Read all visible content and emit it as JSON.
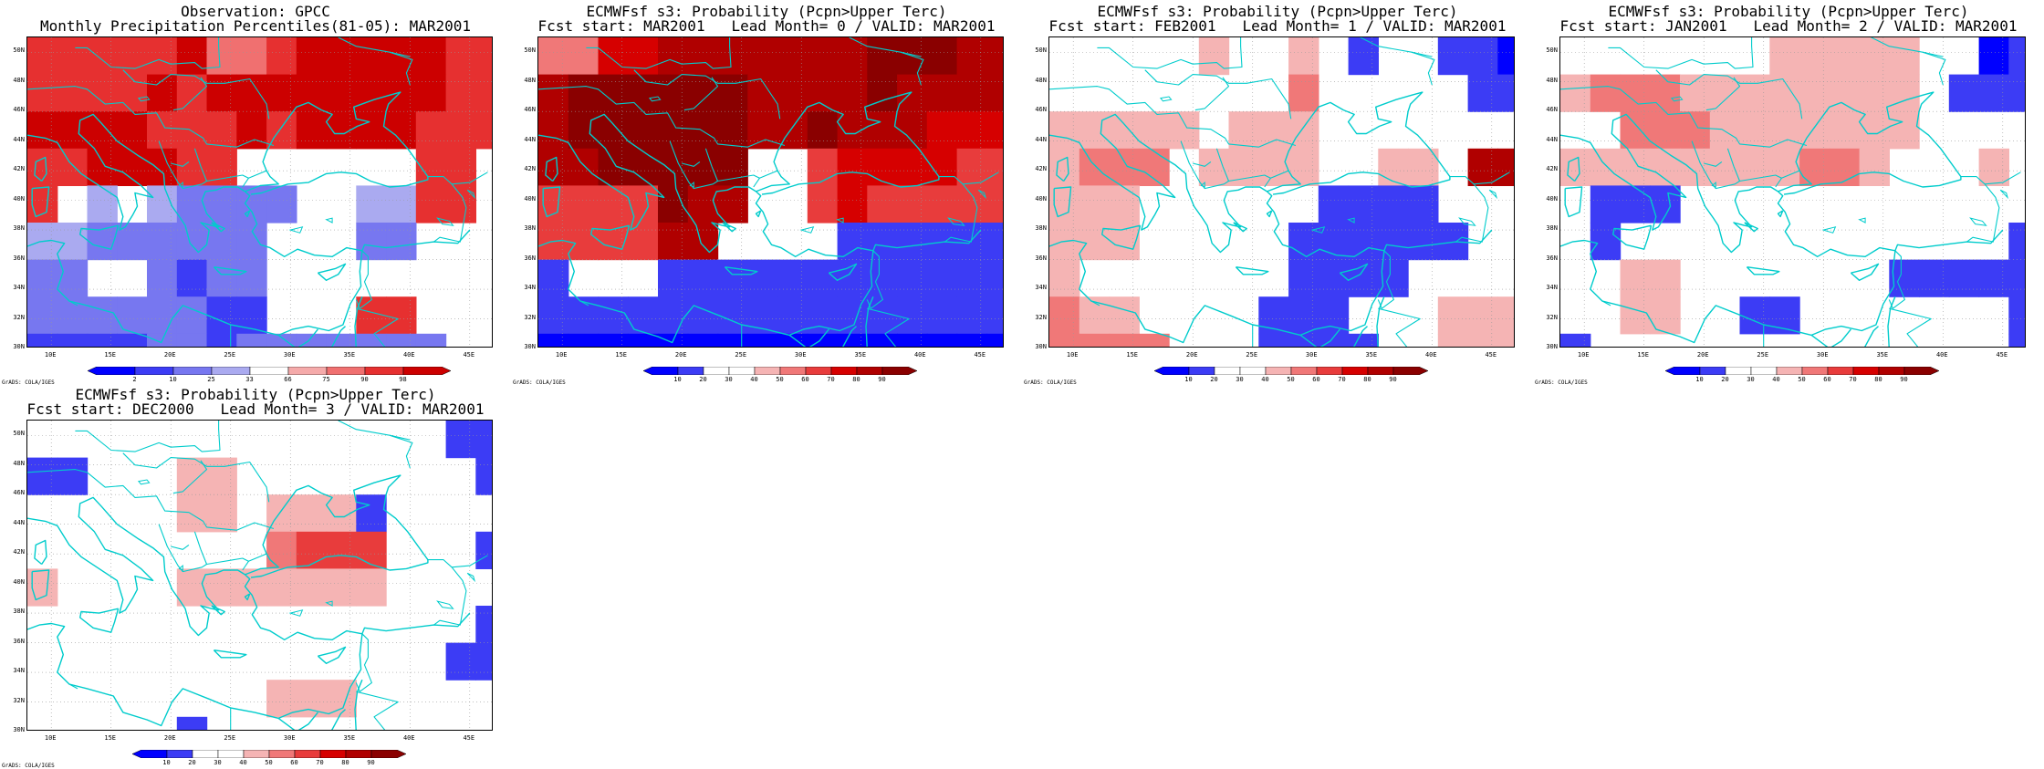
{
  "credit": "GrADS: COLA/IGES",
  "lat_range": [
    30,
    51
  ],
  "lon_range": [
    8,
    47
  ],
  "lat_ticks": [
    "30N",
    "32N",
    "34N",
    "36N",
    "38N",
    "40N",
    "42N",
    "44N",
    "46N",
    "48N",
    "50N"
  ],
  "lon_ticks": [
    "10E",
    "15E",
    "20E",
    "25E",
    "30E",
    "35E",
    "40E",
    "45E"
  ],
  "grid": {
    "lon0": 8,
    "lat0": 51,
    "dlon": 2.5,
    "dlat": 2.5,
    "cols": 16,
    "rows": 9
  },
  "land_color": "#00cccc",
  "scales": {
    "obs": {
      "labels": [
        "2",
        "10",
        "25",
        "33",
        "66",
        "75",
        "90",
        "98"
      ],
      "colors": [
        "#0000ff",
        "#3c3cf5",
        "#7777f0",
        "#aaaaf0",
        "#ffffff",
        "#f5aaaa",
        "#f07070",
        "#e63030",
        "#cc0000"
      ]
    },
    "prob": {
      "labels": [
        "10",
        "20",
        "30",
        "40",
        "50",
        "60",
        "70",
        "80",
        "90"
      ],
      "colors": [
        "#0000ff",
        "#3c3cf5",
        "#ffffff",
        "#ffffff",
        "#f5b4b4",
        "#f07878",
        "#e83c3c",
        "#d60000",
        "#b00000",
        "#8a0000"
      ]
    }
  },
  "panels": [
    {
      "title1": "Observation: GPCC",
      "title2": "Monthly Precipitation Percentiles(81-05): MAR2001",
      "scale": "obs",
      "cells": [
        "7777786678888877",
        "7777878888888877",
        "8888777878888777",
        "7788877444444774",
        "7434322224433774",
        "3322222244422444",
        "2244212244444444",
        "2222221144477444",
        "1111221222222244"
      ]
    },
    {
      "title1": "ECMWFsf s3: Probability (Pcpn>Upper Terc)",
      "title2": "Fcst start: MAR2001   Lead Month= 0 / VALID: MAR2001",
      "scale": "prob",
      "cells": [
        "5577888888899988",
        "8999999888898888",
        "8999999889888777",
        "8899999226777766",
        "6666988226766666",
        "6666882222111111",
        "1222111111111111",
        "1111111111111111",
        "0000000000000000"
      ]
    },
    {
      "title1": "ECMWFsf s3: Probability (Pcpn>Upper Terc)",
      "title2": "Fcst start: FEB2001   Lead Month= 1 / VALID: MAR2001",
      "scale": "prob",
      "cells": [
        "2222242242122110",
        "2222222252222211",
        "4444424442222222",
        "4555244442244288",
        "4442222221111222",
        "4442222211111122",
        "4222222211112222",
        "5442222111222444",
        "5555222111122444"
      ]
    },
    {
      "title1": "ECMWFsf s3: Probability (Pcpn>Upper Terc)",
      "title2": "Fcst start: JAN2001   Lead Month= 2 / VALID: MAR2001",
      "scale": "prob",
      "cells": [
        "2222222444442201",
        "4555444444442111",
        "2255544444442222",
        "4444444455422242",
        "2111222222222222",
        "2122222222222221",
        "2244222222211111",
        "2244221122222221",
        "1222222222222221"
      ]
    },
    {
      "title1": "ECMWFsf s3: Probability (Pcpn>Upper Terc)",
      "title2": "Fcst start: DEC2000   Lead Month= 3 / VALID: MAR2001",
      "scale": "prob",
      "cells": [
        "2222222222222211",
        "1122244222222221",
        "2222244244412222",
        "2222222256662221",
        "4222244444442222",
        "2222222222222221",
        "2222222222222211",
        "2222222244422222",
        "2222212222222222"
      ]
    }
  ]
}
